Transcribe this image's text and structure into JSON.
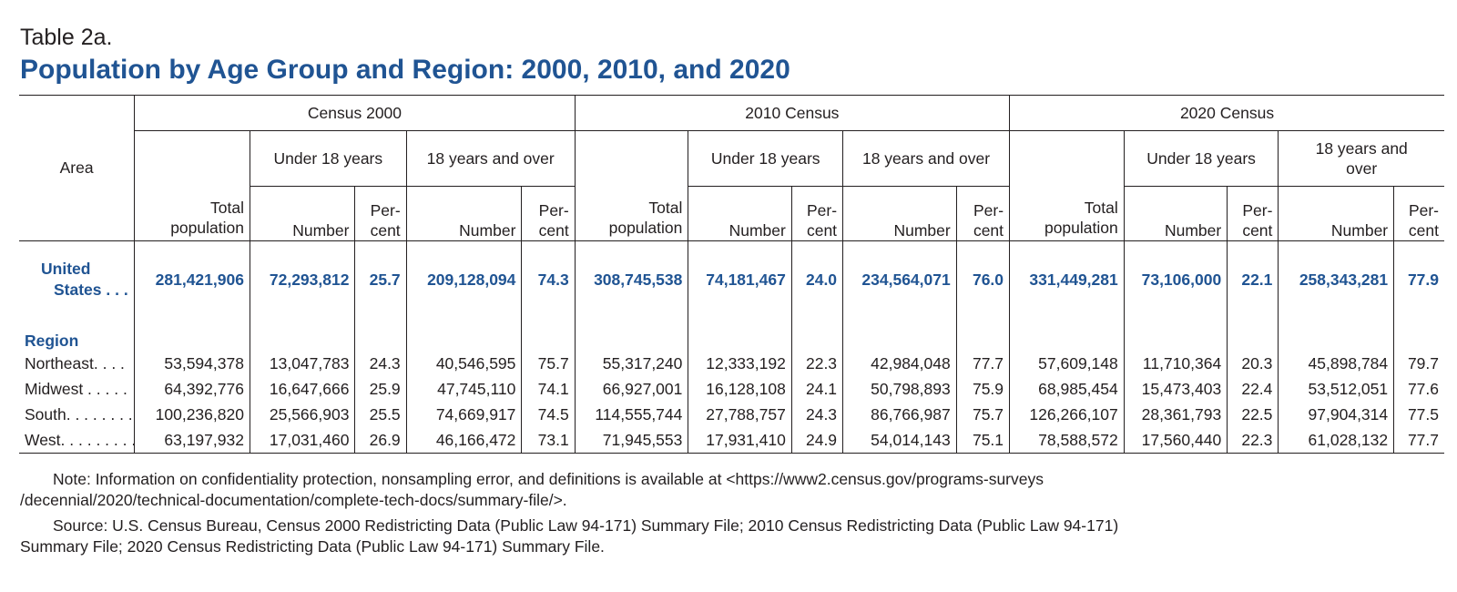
{
  "label": "Table 2a.",
  "title": "Population by Age Group and Region: 2000, 2010, and 2020",
  "headers": {
    "area": "Area",
    "censuses": [
      "Census 2000",
      "2010 Census",
      "2020 Census"
    ],
    "under18": "Under 18 years",
    "over18": "18 years and over",
    "over18_2020": "18 years and over",
    "total1": "Total",
    "total2": "population",
    "number": "Number",
    "per1": "Per-",
    "per2": "cent"
  },
  "us": {
    "name1": "United",
    "name2": "States . . .",
    "values": [
      "281,421,906",
      "72,293,812",
      "25.7",
      "209,128,094",
      "74.3",
      "308,745,538",
      "74,181,467",
      "24.0",
      "234,564,071",
      "76.0",
      "331,449,281",
      "73,106,000",
      "22.1",
      "258,343,281",
      "77.9"
    ]
  },
  "region_label": "Region",
  "regions": [
    {
      "name": "Northeast. . . .",
      "values": [
        "53,594,378",
        "13,047,783",
        "24.3",
        "40,546,595",
        "75.7",
        "55,317,240",
        "12,333,192",
        "22.3",
        "42,984,048",
        "77.7",
        "57,609,148",
        "11,710,364",
        "20.3",
        "45,898,784",
        "79.7"
      ]
    },
    {
      "name": "Midwest . . . . .",
      "values": [
        "64,392,776",
        "16,647,666",
        "25.9",
        "47,745,110",
        "74.1",
        "66,927,001",
        "16,128,108",
        "24.1",
        "50,798,893",
        "75.9",
        "68,985,454",
        "15,473,403",
        "22.4",
        "53,512,051",
        "77.6"
      ]
    },
    {
      "name": "South. . . . . . . . .",
      "values": [
        "100,236,820",
        "25,566,903",
        "25.5",
        "74,669,917",
        "74.5",
        "114,555,744",
        "27,788,757",
        "24.3",
        "86,766,987",
        "75.7",
        "126,266,107",
        "28,361,793",
        "22.5",
        "97,904,314",
        "77.5"
      ]
    },
    {
      "name": "West. . . . . . . . .",
      "values": [
        "63,197,932",
        "17,031,460",
        "26.9",
        "46,166,472",
        "73.1",
        "71,945,553",
        "17,931,410",
        "24.9",
        "54,014,143",
        "75.1",
        "78,588,572",
        "17,560,440",
        "22.3",
        "61,028,132",
        "77.7"
      ]
    }
  ],
  "note1": "Note: Information on confidentiality protection, nonsampling error, and definitions is available at <https://www2.census.gov/programs-surveys",
  "note2": "/decennial/2020/technical-documentation/complete-tech-docs/summary-file/>.",
  "source1": "Source: U.S. Census Bureau, Census 2000 Redistricting Data (Public Law 94-171) Summary File; 2010 Census Redistricting Data (Public Law 94-171)",
  "source2": "Summary File; 2020 Census Redistricting Data (Public Law 94-171) Summary File."
}
